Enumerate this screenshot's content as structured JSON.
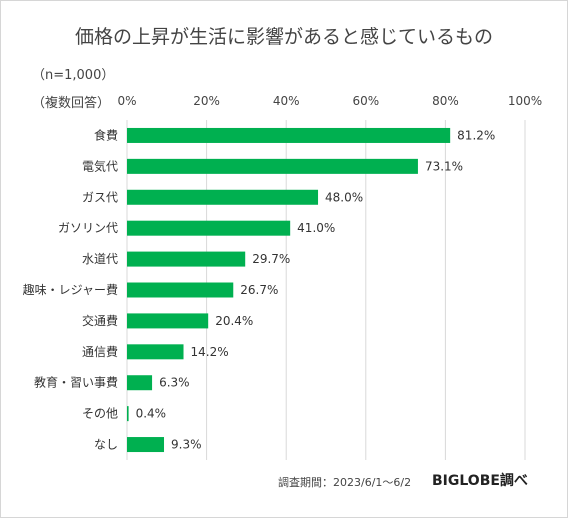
{
  "header": {
    "title": "価格の上昇が生活に影響があると感じているもの",
    "sample_size": "（n=1,000）",
    "multiple_answers": "（複数回答）"
  },
  "footer": {
    "survey_period": "調査期間：2023/6/1～6/2",
    "brand": "BIGLOBE調べ"
  },
  "chart_data": {
    "type": "bar",
    "orientation": "horizontal",
    "categories": [
      "食費",
      "電気代",
      "ガス代",
      "ガソリン代",
      "水道代",
      "趣味・レジャー費",
      "交通費",
      "通信費",
      "教育・習い事費",
      "その他",
      "なし"
    ],
    "values": [
      81.2,
      73.1,
      48.0,
      41.0,
      29.7,
      26.7,
      20.4,
      14.2,
      6.3,
      0.4,
      9.3
    ],
    "value_labels": [
      "81.2%",
      "73.1%",
      "48.0%",
      "41.0%",
      "29.7%",
      "26.7%",
      "20.4%",
      "14.2%",
      "6.3%",
      "0.4%",
      "9.3%"
    ],
    "xlim": [
      0,
      100
    ],
    "ticks": [
      0,
      20,
      40,
      60,
      80,
      100
    ],
    "tick_labels": [
      "0%",
      "20%",
      "40%",
      "60%",
      "80%",
      "100%"
    ],
    "bar_color": "#00b050",
    "grid": true,
    "legend": "none"
  }
}
